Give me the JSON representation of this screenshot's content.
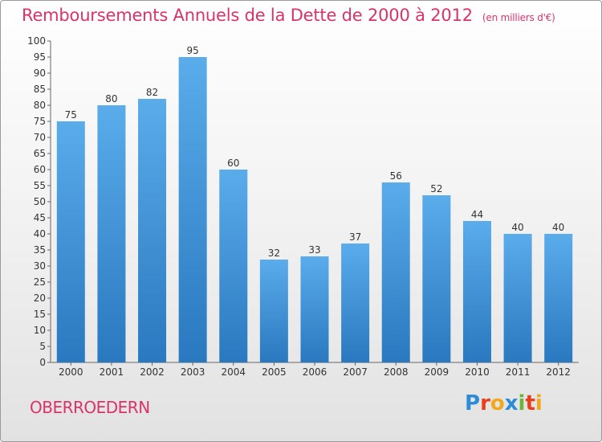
{
  "header": {
    "title": "Remboursements Annuels de la Dette de 2000 à 2012",
    "subtitle": "(en milliers d'€)"
  },
  "commune": "OBERROEDERN",
  "logo": {
    "text": "Proxiti",
    "letters": [
      {
        "ch": "P",
        "color": "#2e8bd6"
      },
      {
        "ch": "r",
        "color": "#e8401c"
      },
      {
        "ch": "o",
        "color": "#f2a81c"
      },
      {
        "ch": "x",
        "color": "#2e8bd6"
      },
      {
        "ch": "i",
        "color": "#6bb43a"
      },
      {
        "ch": "t",
        "color": "#e8401c"
      },
      {
        "ch": "i",
        "color": "#f2a81c"
      }
    ]
  },
  "colors": {
    "bar_top": "#5aaceb",
    "bar_bottom": "#2a78bf",
    "title": "#d9336a"
  },
  "chart_data": {
    "type": "bar",
    "title": "Remboursements Annuels de la Dette de 2000 à 2012",
    "xlabel": "",
    "ylabel": "(en milliers d'€)",
    "categories": [
      "2000",
      "2001",
      "2002",
      "2003",
      "2004",
      "2005",
      "2006",
      "2007",
      "2008",
      "2009",
      "2010",
      "2011",
      "2012"
    ],
    "values": [
      75,
      80,
      82,
      95,
      60,
      32,
      33,
      37,
      56,
      52,
      44,
      40,
      40
    ],
    "ylim": [
      0,
      100
    ],
    "ytick_step": 5,
    "grid": false
  }
}
